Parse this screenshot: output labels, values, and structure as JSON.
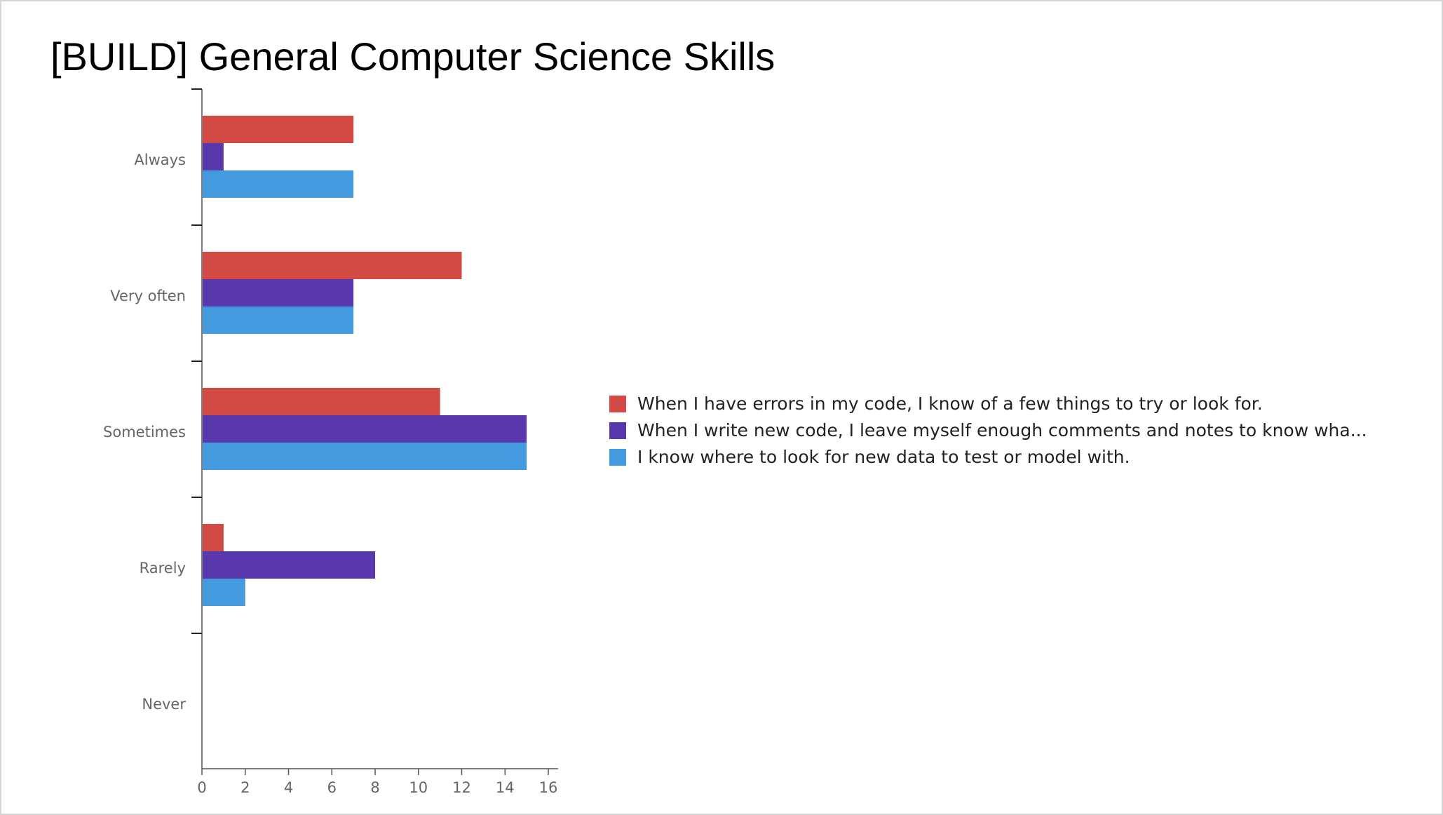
{
  "slide": {
    "title": "[BUILD] General Computer Science Skills"
  },
  "colors": {
    "grid_axis": "#555555",
    "tick_label": "#666666",
    "legend_text": "#222222"
  },
  "chart_data": {
    "type": "bar",
    "orientation": "horizontal",
    "title": "",
    "xlabel": "",
    "ylabel": "",
    "categories": [
      "Always",
      "Very often",
      "Sometimes",
      "Rarely",
      "Never"
    ],
    "xlim": [
      0,
      16
    ],
    "xticks": [
      0,
      2,
      4,
      6,
      8,
      10,
      12,
      14,
      16
    ],
    "grid": false,
    "legend_position": "right",
    "series": [
      {
        "name": "When I have errors in my code, I know of a few things to try or look for.",
        "color": "#d24a43",
        "values": [
          7,
          12,
          11,
          1,
          0
        ]
      },
      {
        "name": "When I write new code, I leave myself enough comments and notes to know wha...",
        "color": "#5937ac",
        "values": [
          1,
          7,
          15,
          8,
          0
        ]
      },
      {
        "name": "I know where to look for new data to test or model with.",
        "color": "#449ade",
        "values": [
          7,
          7,
          15,
          2,
          0
        ]
      }
    ]
  }
}
